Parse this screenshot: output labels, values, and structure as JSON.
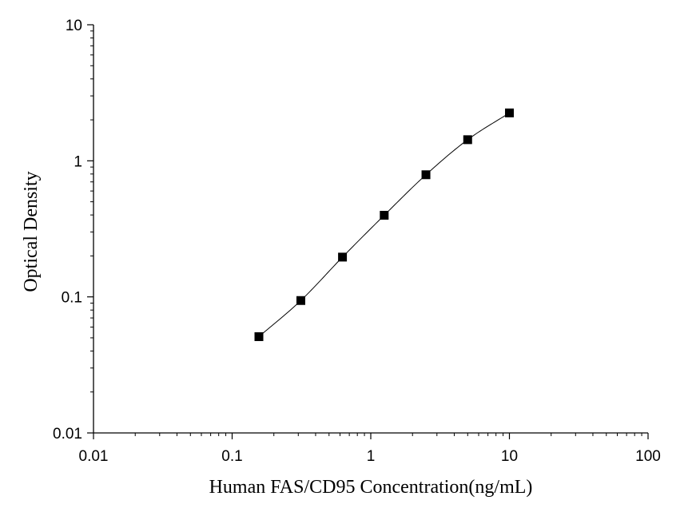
{
  "chart_data": {
    "type": "scatter",
    "xlabel": "Human FAS/CD95 Concentration(ng/mL)",
    "ylabel": "Optical Density",
    "x_scale": "log",
    "y_scale": "log",
    "xlim": [
      0.01,
      100
    ],
    "ylim": [
      0.01,
      10
    ],
    "x_ticks": [
      "0.01",
      "0.1",
      "1",
      "10",
      "100"
    ],
    "y_ticks": [
      "0.01",
      "0.1",
      "1",
      "10"
    ],
    "grid": false,
    "legend": "none",
    "series": [
      {
        "x": [
          0.156,
          0.313,
          0.625,
          1.25,
          2.5,
          5,
          10
        ],
        "y": [
          0.051,
          0.094,
          0.196,
          0.398,
          0.79,
          1.43,
          2.25
        ],
        "marker": "square",
        "fit_line": true,
        "color": "#000000"
      }
    ]
  }
}
